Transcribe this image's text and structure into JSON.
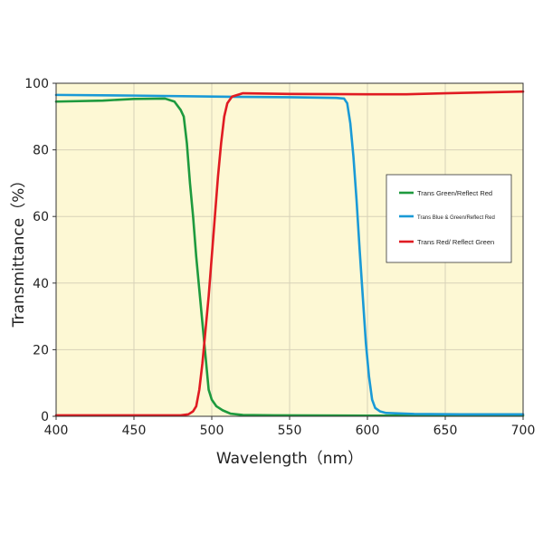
{
  "chart_data": {
    "type": "line",
    "title": "",
    "xlabel": "Wavelength（nm）",
    "ylabel": "Transmittance（%）",
    "xlim": [
      400,
      700
    ],
    "ylim": [
      0,
      100
    ],
    "x_ticks": [
      "400",
      "450",
      "500",
      "550",
      "600",
      "650",
      "700"
    ],
    "y_ticks": [
      "0",
      "20",
      "40",
      "60",
      "80",
      "100"
    ],
    "grid": true,
    "legend_position": "right",
    "plot_background": "#fdf8d4",
    "series": [
      {
        "name": "Trans Green/Reflect Red",
        "color": "#1e9a3e",
        "points": [
          [
            400,
            94.5
          ],
          [
            430,
            94.8
          ],
          [
            450,
            95.3
          ],
          [
            470,
            95.4
          ],
          [
            476,
            94.5
          ],
          [
            480,
            92
          ],
          [
            482,
            90
          ],
          [
            484,
            82
          ],
          [
            486,
            70
          ],
          [
            488,
            60
          ],
          [
            490,
            48
          ],
          [
            492,
            38
          ],
          [
            494,
            28
          ],
          [
            496,
            18
          ],
          [
            498,
            8
          ],
          [
            500,
            5
          ],
          [
            503,
            3
          ],
          [
            507,
            1.8
          ],
          [
            512,
            0.8
          ],
          [
            520,
            0.4
          ],
          [
            540,
            0.3
          ],
          [
            600,
            0.2
          ],
          [
            700,
            0.2
          ]
        ]
      },
      {
        "name": "Trans Blue & Green/Reflect Red",
        "color": "#1a9ad6",
        "points": [
          [
            400,
            96.5
          ],
          [
            450,
            96.3
          ],
          [
            500,
            96
          ],
          [
            550,
            95.8
          ],
          [
            580,
            95.6
          ],
          [
            585,
            95.4
          ],
          [
            587,
            94
          ],
          [
            589,
            88
          ],
          [
            591,
            78
          ],
          [
            593,
            65
          ],
          [
            595,
            50
          ],
          [
            597,
            36
          ],
          [
            599,
            22
          ],
          [
            601,
            12
          ],
          [
            603,
            5
          ],
          [
            605,
            2.5
          ],
          [
            608,
            1.5
          ],
          [
            612,
            1
          ],
          [
            630,
            0.7
          ],
          [
            660,
            0.6
          ],
          [
            700,
            0.6
          ]
        ]
      },
      {
        "name": "Trans Red/ Reflect Green",
        "color": "#e01b22",
        "points": [
          [
            400,
            0.3
          ],
          [
            480,
            0.3
          ],
          [
            485,
            0.6
          ],
          [
            488,
            1.5
          ],
          [
            490,
            3
          ],
          [
            492,
            8
          ],
          [
            494,
            16
          ],
          [
            496,
            26
          ],
          [
            498,
            36
          ],
          [
            500,
            48
          ],
          [
            502,
            60
          ],
          [
            504,
            72
          ],
          [
            506,
            82
          ],
          [
            508,
            90
          ],
          [
            510,
            94
          ],
          [
            513,
            96
          ],
          [
            520,
            97
          ],
          [
            550,
            96.8
          ],
          [
            600,
            96.7
          ],
          [
            625,
            96.7
          ],
          [
            650,
            97
          ],
          [
            700,
            97.5
          ]
        ]
      }
    ]
  }
}
